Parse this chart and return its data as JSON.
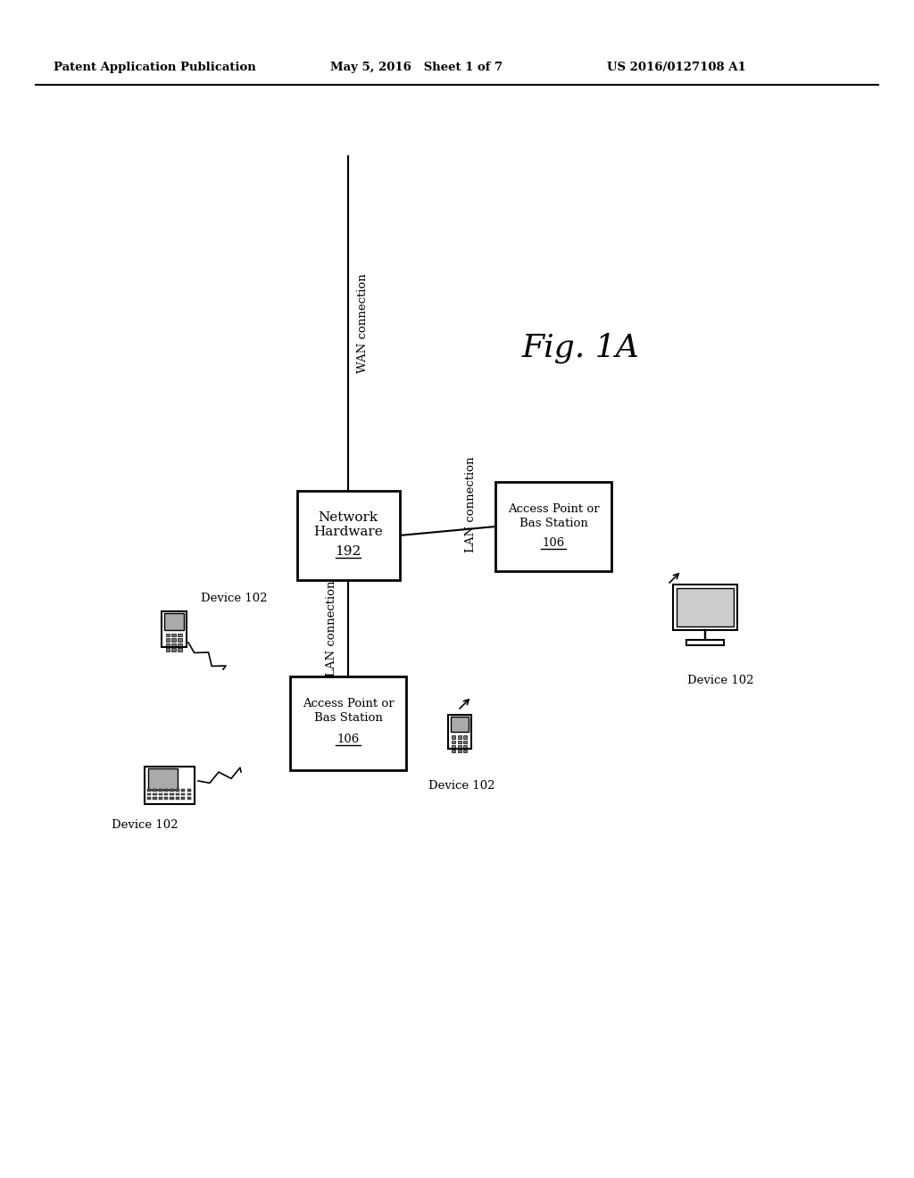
{
  "background_color": "#ffffff",
  "header_text": "Patent Application Publication",
  "header_date": "May 5, 2016   Sheet 1 of 7",
  "header_patent": "US 2016/0127108 A1",
  "fig_label": "Fig. 1A",
  "wan_label": "WAN connection",
  "lan_top_label": "LAN connection",
  "lan_bottom_label": "LAN connection",
  "device_label": "Device 102",
  "nh_label1": "Network",
  "nh_label2": "Hardware",
  "nh_label3": "192",
  "ap_label1": "Access Point or",
  "ap_label2": "Bas Station",
  "ap_label3": "106",
  "ap2_label1": "Access Point or",
  "ap2_label2": "Bas Station",
  "ap2_label3": "106"
}
